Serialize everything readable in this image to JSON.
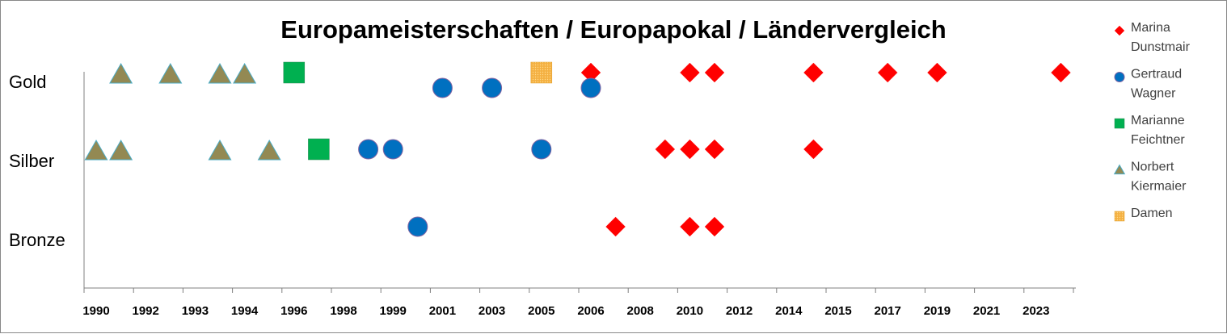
{
  "chart_data": {
    "type": "scatter",
    "title": "Europameisterschaften / Europapokal / Ländervergleich",
    "categories": [
      "1990",
      "1992",
      "1993",
      "1994",
      "1996",
      "1998",
      "1999",
      "2001",
      "2003",
      "2005",
      "2006",
      "2008",
      "2010",
      "2012",
      "2014",
      "2015",
      "2017",
      "2019",
      "2021",
      "2023"
    ],
    "y_levels": [
      "Gold",
      "Silber",
      "Bronze"
    ],
    "legend_position": "right",
    "grid": false,
    "series": [
      {
        "name": "Marina Dunstmair",
        "marker": "diamond",
        "color": "#ff0000",
        "points": [
          {
            "x": 10.0,
            "level": "Gold"
          },
          {
            "x": 12.0,
            "level": "Gold"
          },
          {
            "x": 12.5,
            "level": "Gold"
          },
          {
            "x": 14.5,
            "level": "Gold"
          },
          {
            "x": 16.0,
            "level": "Gold"
          },
          {
            "x": 17.0,
            "level": "Gold"
          },
          {
            "x": 19.5,
            "level": "Gold"
          },
          {
            "x": 11.5,
            "level": "Silber"
          },
          {
            "x": 12.0,
            "level": "Silber"
          },
          {
            "x": 12.5,
            "level": "Silber"
          },
          {
            "x": 14.5,
            "level": "Silber"
          },
          {
            "x": 10.5,
            "level": "Bronze"
          },
          {
            "x": 12.0,
            "level": "Bronze"
          },
          {
            "x": 12.5,
            "level": "Bronze"
          }
        ]
      },
      {
        "name": "Gertraud Wagner",
        "marker": "circle",
        "color": "#0070c0",
        "points": [
          {
            "x": 7.0,
            "level": "Gold",
            "offset": "low"
          },
          {
            "x": 8.0,
            "level": "Gold",
            "offset": "low"
          },
          {
            "x": 10.0,
            "level": "Gold",
            "offset": "low"
          },
          {
            "x": 5.5,
            "level": "Silber"
          },
          {
            "x": 6.0,
            "level": "Silber"
          },
          {
            "x": 9.0,
            "level": "Silber"
          },
          {
            "x": 6.5,
            "level": "Bronze"
          }
        ]
      },
      {
        "name": "Marianne Feichtner",
        "marker": "square",
        "color": "#00b050",
        "points": [
          {
            "x": 4.0,
            "level": "Gold"
          },
          {
            "x": 4.5,
            "level": "Silber"
          }
        ]
      },
      {
        "name": "Norbert Kiermaier",
        "marker": "triangle",
        "color": "#938953",
        "points": [
          {
            "x": 0.5,
            "level": "Gold"
          },
          {
            "x": 1.5,
            "level": "Gold"
          },
          {
            "x": 2.5,
            "level": "Gold"
          },
          {
            "x": 3.0,
            "level": "Gold"
          },
          {
            "x": 0.0,
            "level": "Silber"
          },
          {
            "x": 0.5,
            "level": "Silber"
          },
          {
            "x": 2.5,
            "level": "Silber"
          },
          {
            "x": 3.5,
            "level": "Silber"
          }
        ]
      },
      {
        "name": "Damen",
        "marker": "dotted-square",
        "color": "#f4b041",
        "points": [
          {
            "x": 9.0,
            "level": "Gold"
          }
        ]
      }
    ]
  }
}
